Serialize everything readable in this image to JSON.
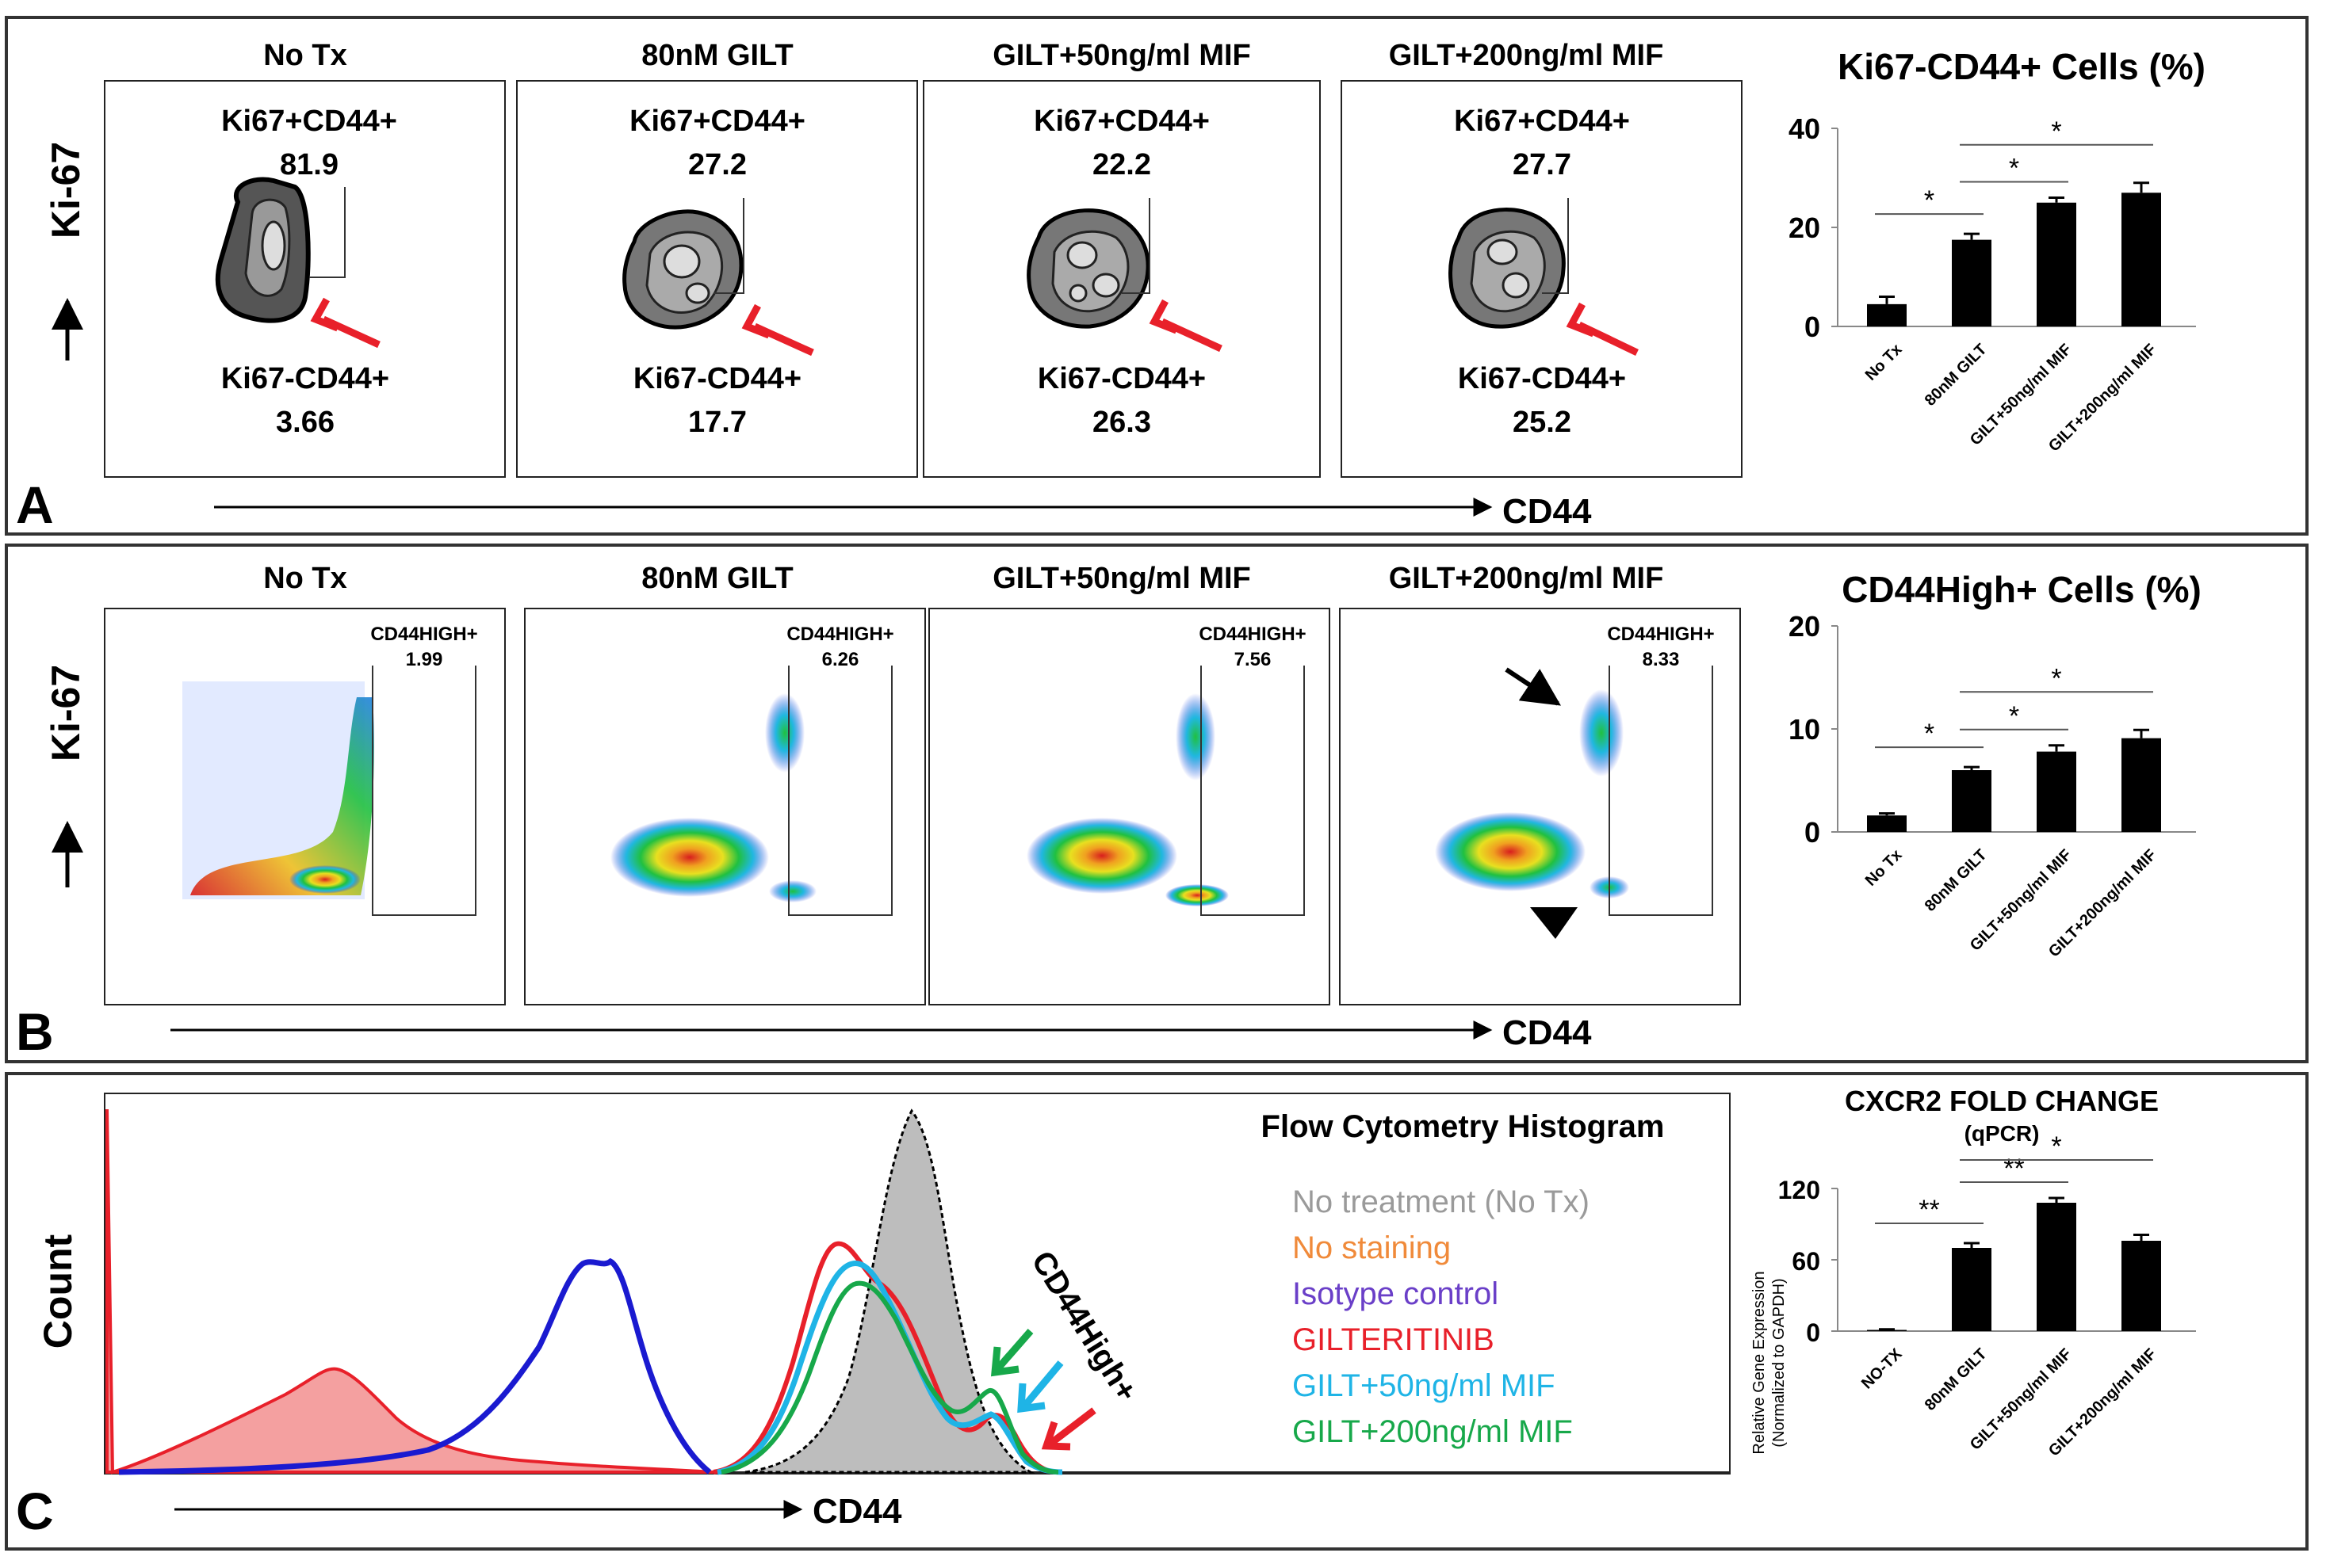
{
  "panels": {
    "A": {
      "letter": "A",
      "y_axis_label": "Ki-67",
      "x_axis_label": "CD44",
      "plots": [
        {
          "title": "No Tx",
          "upper_gate": "Ki67+CD44+",
          "upper_value": "81.9",
          "lower_gate": "Ki67-CD44+",
          "lower_value": "3.66"
        },
        {
          "title": "80nM GILT",
          "upper_gate": "Ki67+CD44+",
          "upper_value": "27.2",
          "lower_gate": "Ki67-CD44+",
          "lower_value": "17.7"
        },
        {
          "title": "GILT+50ng/ml MIF",
          "upper_gate": "Ki67+CD44+",
          "upper_value": "22.2",
          "lower_gate": "Ki67-CD44+",
          "lower_value": "26.3"
        },
        {
          "title": "GILT+200ng/ml MIF",
          "upper_gate": "Ki67+CD44+",
          "upper_value": "27.7",
          "lower_gate": "Ki67-CD44+",
          "lower_value": "25.2"
        }
      ]
    },
    "B": {
      "letter": "B",
      "y_axis_label": "Ki-67",
      "x_axis_label": "CD44",
      "plots": [
        {
          "title": "No Tx",
          "gate": "CD44HIGH+",
          "value": "1.99"
        },
        {
          "title": "80nM GILT",
          "gate": "CD44HIGH+",
          "value": "6.26"
        },
        {
          "title": "GILT+50ng/ml MIF",
          "gate": "CD44HIGH+",
          "value": "7.56"
        },
        {
          "title": "GILT+200ng/ml MIF",
          "gate": "CD44HIGH+",
          "value": "8.33"
        }
      ]
    },
    "C": {
      "letter": "C",
      "y_axis_label": "Count",
      "x_axis_label": "CD44",
      "title": "Flow Cytometry Histogram",
      "annotation": "CD44High+",
      "legend": [
        {
          "label": "No treatment (No Tx)",
          "color": "#9a9a9a"
        },
        {
          "label": "No staining",
          "color": "#f08a3a"
        },
        {
          "label": "Isotype control",
          "color": "#6a3fc8"
        },
        {
          "label": "GILTERITINIB",
          "color": "#e8202a"
        },
        {
          "label": "GILT+50ng/ml MIF",
          "color": "#1fb4e6"
        },
        {
          "label": "GILT+200ng/ml MIF",
          "color": "#17a84a"
        }
      ]
    }
  },
  "chart_data": [
    {
      "type": "bar",
      "title": "Ki67-CD44+ Cells (%)",
      "categories": [
        "No Tx",
        "80nM GILT",
        "GILT+50ng/ml MIF",
        "GILT+200ng/ml MIF"
      ],
      "values": [
        4.5,
        17.5,
        25,
        27
      ],
      "errors": [
        1.5,
        1.2,
        1.0,
        2.0
      ],
      "ylim": [
        0,
        40
      ],
      "yticks": [
        "0",
        "20",
        "40"
      ],
      "ylabel": "",
      "significance": [
        {
          "from": 0,
          "to": 1,
          "label": "*"
        },
        {
          "from": 1,
          "to": 2,
          "label": "*"
        },
        {
          "from": 1,
          "to": 3,
          "label": "*"
        }
      ]
    },
    {
      "type": "bar",
      "title": "CD44High+ Cells (%)",
      "categories": [
        "No Tx",
        "80nM GILT",
        "GILT+50ng/ml MIF",
        "GILT+200ng/ml MIF"
      ],
      "values": [
        1.6,
        6.0,
        7.8,
        9.1
      ],
      "errors": [
        0.2,
        0.3,
        0.6,
        0.8
      ],
      "ylim": [
        0,
        20
      ],
      "yticks": [
        "0",
        "10",
        "20"
      ],
      "ylabel": "",
      "significance": [
        {
          "from": 0,
          "to": 1,
          "label": "*"
        },
        {
          "from": 1,
          "to": 2,
          "label": "*"
        },
        {
          "from": 1,
          "to": 3,
          "label": "*"
        }
      ]
    },
    {
      "type": "bar",
      "title": "CXCR2 FOLD CHANGE",
      "subtitle": "(qPCR)",
      "categories": [
        "NO-TX",
        "80nM GILT",
        "GILT+50ng/ml MIF",
        "GILT+200ng/ml MIF"
      ],
      "values": [
        1,
        70,
        108,
        76
      ],
      "errors": [
        0.5,
        4,
        4,
        5
      ],
      "ylim": [
        0,
        120
      ],
      "yticks": [
        "0",
        "60",
        "120"
      ],
      "ylabel": "Relative Gene Expression",
      "ylabel2": "(Normalized to GAPDH)",
      "significance": [
        {
          "from": 0,
          "to": 1,
          "label": "**"
        },
        {
          "from": 1,
          "to": 2,
          "label": "**"
        },
        {
          "from": 1,
          "to": 3,
          "label": "*"
        }
      ]
    }
  ]
}
